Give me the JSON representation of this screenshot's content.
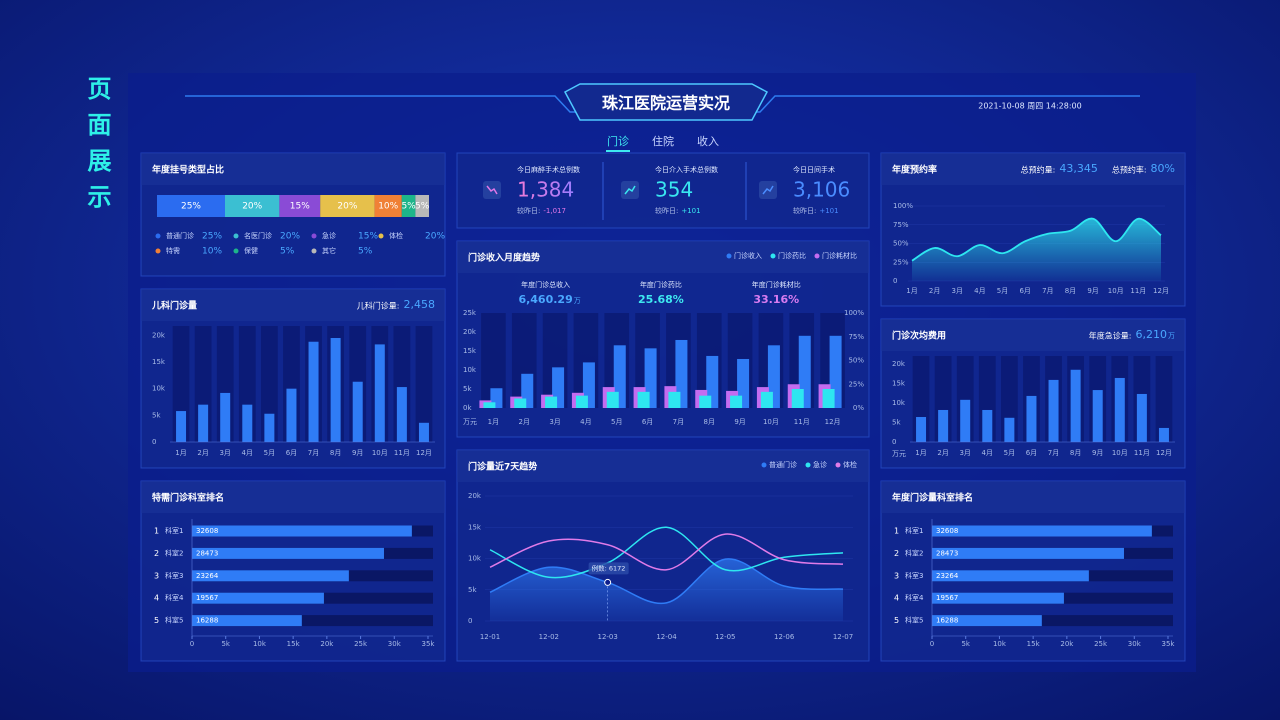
{
  "page_title": "页面展示",
  "header": {
    "title": "珠江医院运营实况",
    "datetime": "2021-10-08  周四  14:28:00",
    "tabs": [
      "门诊",
      "住院",
      "收入"
    ]
  },
  "kpis": [
    {
      "label": "今日麻醉手术总例数",
      "value": "1,384",
      "compare_label": "较昨日:",
      "compare": "-1,017"
    },
    {
      "label": "今日介入手术总例数",
      "value": "354",
      "compare_label": "较昨日:",
      "compare": "+101"
    },
    {
      "label": "今日日间手术",
      "value": "3,106",
      "compare_label": "较昨日:",
      "compare": "+101"
    }
  ],
  "chart_data": [
    {
      "type": "stacked-percent",
      "title": "年度挂号类型占比",
      "categories": [
        "普通门诊",
        "名医门诊",
        "急诊",
        "体检",
        "特需",
        "保健",
        "其它"
      ],
      "values": [
        25,
        20,
        15,
        20,
        10,
        5,
        5
      ],
      "value_labels": [
        "25%",
        "20%",
        "15%",
        "20%",
        "10%",
        "5%",
        "5%"
      ],
      "colors": [
        "#2b6cf0",
        "#3bbfd2",
        "#8a4bd6",
        "#e6c04b",
        "#f08036",
        "#1db58a",
        "#b8b8b8"
      ]
    },
    {
      "type": "bar",
      "title": "儿科门诊量",
      "stats": [
        {
          "label": "儿科门诊量:",
          "value": "2,458"
        }
      ],
      "categories": [
        "1月",
        "2月",
        "3月",
        "4月",
        "5月",
        "6月",
        "7月",
        "8月",
        "9月",
        "10月",
        "11月",
        "12月"
      ],
      "values": [
        5800,
        7000,
        9200,
        7000,
        5300,
        10000,
        18800,
        19500,
        11300,
        18300,
        10300,
        3600
      ],
      "color": "#2f7cf6",
      "ylim": [
        0,
        21000
      ],
      "yticks": [
        0,
        {
          "value": 5000,
          "label": "5k"
        },
        {
          "value": 10000,
          "label": "10k"
        },
        {
          "value": 15000,
          "label": "15k"
        },
        {
          "value": 20000,
          "label": "20k"
        }
      ]
    },
    {
      "type": "hbar",
      "title": "特需门诊科室排名",
      "ranks": [
        1,
        2,
        3,
        4,
        5
      ],
      "categories": [
        "科室1",
        "科室2",
        "科室3",
        "科室4",
        "科室5"
      ],
      "values": [
        32608,
        28473,
        23264,
        19567,
        16288
      ],
      "color": "#2f7cf6",
      "xlim": [
        0,
        35000
      ],
      "xticks": [
        0,
        {
          "value": 5000,
          "label": "5k"
        },
        {
          "value": 10000,
          "label": "10k"
        },
        {
          "value": 15000,
          "label": "15k"
        },
        {
          "value": 20000,
          "label": "20k"
        },
        {
          "value": 25000,
          "label": "25k"
        },
        {
          "value": 30000,
          "label": "30k"
        },
        {
          "value": 35000,
          "label": "35k"
        }
      ]
    },
    {
      "type": "combo",
      "title": "门诊收入月度趋势",
      "stats": [
        {
          "label": "年度门诊总收入",
          "value": "6,460.29",
          "unit": "万"
        },
        {
          "label": "年度门诊药比",
          "value": "25.68%"
        },
        {
          "label": "年度门诊耗材比",
          "value": "33.16%"
        }
      ],
      "y_unit": "万元",
      "categories": [
        "1月",
        "2月",
        "3月",
        "4月",
        "5月",
        "6月",
        "7月",
        "8月",
        "9月",
        "10月",
        "11月",
        "12月"
      ],
      "series": [
        {
          "name": "门诊收入",
          "color": "#2f7cf6",
          "values": [
            5200,
            9000,
            10700,
            12000,
            16500,
            15700,
            17900,
            13700,
            12900,
            16500,
            19000,
            19000
          ]
        },
        {
          "name": "门诊药比",
          "color": "#2ee6f0",
          "axis": "y2",
          "values": [
            6,
            10,
            12,
            13,
            17,
            17,
            17,
            13,
            13,
            17,
            20,
            20
          ]
        },
        {
          "name": "门诊耗材比",
          "color": "#c46cf0",
          "axis": "y2",
          "values": [
            8,
            12,
            14,
            16,
            22,
            22,
            23,
            19,
            18,
            22,
            25,
            25
          ]
        }
      ],
      "ylim": [
        0,
        25000
      ],
      "yticks": [
        {
          "value": 0,
          "label": "0k"
        },
        {
          "value": 5000,
          "label": "5k"
        },
        {
          "value": 10000,
          "label": "10k"
        },
        {
          "value": 15000,
          "label": "15k"
        },
        {
          "value": 20000,
          "label": "20k"
        },
        {
          "value": 25000,
          "label": "25k"
        }
      ],
      "y2lim": [
        0,
        100
      ],
      "y2ticks": [
        {
          "value": 0,
          "label": "0%"
        },
        {
          "value": 25,
          "label": "25%"
        },
        {
          "value": 50,
          "label": "50%"
        },
        {
          "value": 75,
          "label": "75%"
        },
        {
          "value": 100,
          "label": "100%"
        }
      ]
    },
    {
      "type": "line",
      "title": "门诊量近7天趋势",
      "tooltip_label": "例数:",
      "categories": [
        "12-01",
        "12-02",
        "12-03",
        "12-04",
        "12-05",
        "12-06",
        "12-07"
      ],
      "series": [
        {
          "name": "普通门诊",
          "color": "#2f7cf6",
          "values": [
            4600,
            8600,
            6172,
            2900,
            9900,
            5600,
            5100
          ]
        },
        {
          "name": "急诊",
          "color": "#2ee6f0",
          "values": [
            11400,
            7000,
            9300,
            15000,
            8200,
            10200,
            10900
          ]
        },
        {
          "name": "体检",
          "color": "#e07be8",
          "values": [
            8600,
            12800,
            12200,
            8200,
            13900,
            9800,
            9100
          ]
        }
      ],
      "ylim": [
        0,
        20000
      ],
      "yticks": [
        0,
        {
          "value": 5000,
          "label": "5k"
        },
        {
          "value": 10000,
          "label": "10k"
        },
        {
          "value": 15000,
          "label": "15k"
        },
        {
          "value": 20000,
          "label": "20k"
        }
      ]
    },
    {
      "type": "area",
      "title": "年度预约率",
      "stats": [
        {
          "label": "总预约量:",
          "value": "43,345"
        },
        {
          "label": "总预约率:",
          "value": "80%"
        }
      ],
      "categories": [
        "1月",
        "2月",
        "3月",
        "4月",
        "5月",
        "6月",
        "7月",
        "8月",
        "9月",
        "10月",
        "11月",
        "12月"
      ],
      "values": [
        27,
        44,
        33,
        48,
        37,
        53,
        63,
        67,
        83,
        53,
        83,
        61
      ],
      "color": "#2ee6f0",
      "ylim": [
        0,
        100
      ],
      "yticks": [
        0,
        {
          "value": 25,
          "label": "25%"
        },
        {
          "value": 50,
          "label": "50%"
        },
        {
          "value": 75,
          "label": "75%"
        },
        {
          "value": 100,
          "label": "100%"
        }
      ]
    },
    {
      "type": "bar",
      "title": "门诊次均费用",
      "stats": [
        {
          "label": "年度急诊量:",
          "value": "6,210",
          "unit": "万"
        }
      ],
      "y_unit": "万元",
      "categories": [
        "1月",
        "2月",
        "3月",
        "4月",
        "5月",
        "6月",
        "7月",
        "8月",
        "9月",
        "10月",
        "11月",
        "12月"
      ],
      "values": [
        6400,
        8200,
        10800,
        8200,
        6200,
        11800,
        15900,
        18500,
        13300,
        16400,
        12300,
        3600
      ],
      "color": "#2f7cf6",
      "ylim": [
        0,
        21000
      ],
      "yticks": [
        0,
        {
          "value": 5000,
          "label": "5k"
        },
        {
          "value": 10000,
          "label": "10k"
        },
        {
          "value": 15000,
          "label": "15k"
        },
        {
          "value": 20000,
          "label": "20k"
        }
      ]
    },
    {
      "type": "hbar",
      "title": "年度门诊量科室排名",
      "ranks": [
        1,
        2,
        3,
        4,
        5
      ],
      "categories": [
        "科室1",
        "科室2",
        "科室3",
        "科室4",
        "科室5"
      ],
      "values": [
        32608,
        28473,
        23264,
        19567,
        16288
      ],
      "color": "#2f7cf6",
      "xlim": [
        0,
        35000
      ],
      "xticks": [
        0,
        {
          "value": 5000,
          "label": "5k"
        },
        {
          "value": 10000,
          "label": "10k"
        },
        {
          "value": 15000,
          "label": "15k"
        },
        {
          "value": 20000,
          "label": "20k"
        },
        {
          "value": 25000,
          "label": "25k"
        },
        {
          "value": 30000,
          "label": "30k"
        },
        {
          "value": 35000,
          "label": "35k"
        }
      ]
    }
  ]
}
